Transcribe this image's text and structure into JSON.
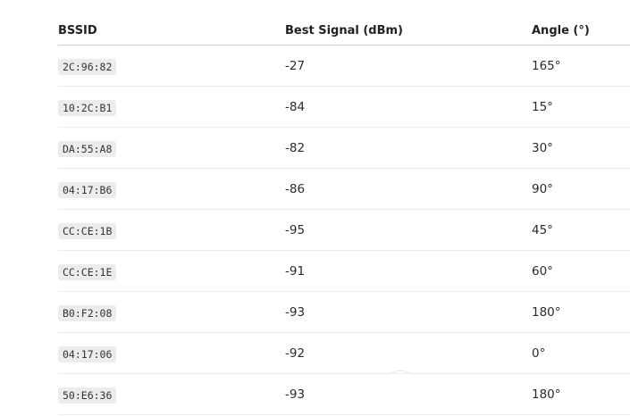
{
  "table": {
    "headers": {
      "bssid": "BSSID",
      "signal": "Best Signal (dBm)",
      "angle": "Angle (°)"
    },
    "rows": [
      {
        "bssid": "2C:96:82",
        "signal": "-27",
        "angle": "165°"
      },
      {
        "bssid": "10:2C:B1",
        "signal": "-84",
        "angle": "15°"
      },
      {
        "bssid": "DA:55:A8",
        "signal": "-82",
        "angle": "30°"
      },
      {
        "bssid": "04:17:B6",
        "signal": "-86",
        "angle": "90°"
      },
      {
        "bssid": "CC:CE:1B",
        "signal": "-95",
        "angle": "45°"
      },
      {
        "bssid": "CC:CE:1E",
        "signal": "-91",
        "angle": "60°"
      },
      {
        "bssid": "B0:F2:08",
        "signal": "-93",
        "angle": "180°"
      },
      {
        "bssid": "04:17:06",
        "signal": "-92",
        "angle": "0°"
      },
      {
        "bssid": "50:E6:36",
        "signal": "-93",
        "angle": "180°"
      }
    ]
  }
}
